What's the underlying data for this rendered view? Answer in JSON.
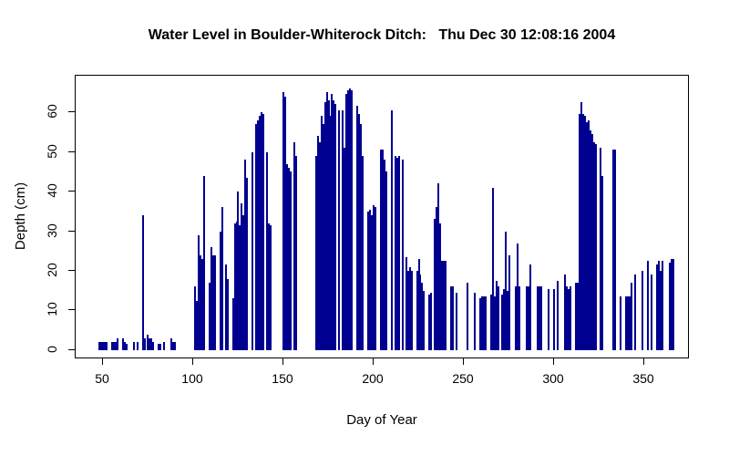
{
  "page": {
    "background": "#ffffff"
  },
  "chart_data": {
    "type": "bar",
    "subtype": "vertical-line-histogram (R type='h')",
    "title": "Water Level in Boulder-Whiterock Ditch:   Thu Dec 30 12:08:16 2004",
    "xlabel": "Day of Year",
    "ylabel": "Depth (cm)",
    "x_ticks": [
      50,
      100,
      150,
      200,
      250,
      300,
      350
    ],
    "y_ticks": [
      0,
      10,
      20,
      30,
      40,
      50,
      60
    ],
    "xlim": [
      34.85,
      375.25
    ],
    "ylim": [
      -2.3,
      69.2
    ],
    "grid": false,
    "legend_position": "none",
    "bar_color": "#000090",
    "axis_color": "#000000",
    "points": [
      [
        48,
        2
      ],
      [
        49,
        2
      ],
      [
        50,
        2
      ],
      [
        51,
        2
      ],
      [
        52,
        2
      ],
      [
        55,
        2
      ],
      [
        56,
        2
      ],
      [
        57,
        2
      ],
      [
        58,
        3
      ],
      [
        61,
        3
      ],
      [
        62,
        2
      ],
      [
        63,
        1.5
      ],
      [
        67,
        2
      ],
      [
        69,
        2
      ],
      [
        72,
        34
      ],
      [
        73,
        3
      ],
      [
        75,
        4
      ],
      [
        76,
        3
      ],
      [
        77,
        3
      ],
      [
        78,
        2
      ],
      [
        81,
        1.5
      ],
      [
        82,
        1.5
      ],
      [
        84,
        2
      ],
      [
        88,
        3
      ],
      [
        89,
        2
      ],
      [
        90,
        2
      ],
      [
        101,
        16
      ],
      [
        102,
        12.5
      ],
      [
        103,
        29
      ],
      [
        104,
        24
      ],
      [
        105,
        23
      ],
      [
        106,
        44
      ],
      [
        109,
        17
      ],
      [
        110,
        26
      ],
      [
        111,
        24
      ],
      [
        112,
        24
      ],
      [
        115,
        30
      ],
      [
        116,
        36
      ],
      [
        118,
        21.5
      ],
      [
        119,
        18
      ],
      [
        122,
        13
      ],
      [
        123,
        32
      ],
      [
        124,
        32.5
      ],
      [
        125,
        40
      ],
      [
        126,
        31.5
      ],
      [
        127,
        37
      ],
      [
        128,
        34
      ],
      [
        129,
        48
      ],
      [
        130,
        43.5
      ],
      [
        133,
        50
      ],
      [
        135,
        57
      ],
      [
        136,
        58
      ],
      [
        137,
        59
      ],
      [
        138,
        60
      ],
      [
        139,
        59.5
      ],
      [
        141,
        50
      ],
      [
        142,
        32
      ],
      [
        143,
        31.5
      ],
      [
        150,
        65
      ],
      [
        151,
        64
      ],
      [
        152,
        47
      ],
      [
        153,
        46
      ],
      [
        154,
        45
      ],
      [
        156,
        52.5
      ],
      [
        157,
        49
      ],
      [
        168,
        49
      ],
      [
        169,
        54
      ],
      [
        170,
        52.5
      ],
      [
        171,
        59
      ],
      [
        172,
        57
      ],
      [
        173,
        62.5
      ],
      [
        174,
        65
      ],
      [
        175,
        63
      ],
      [
        176,
        59
      ],
      [
        177,
        64.5
      ],
      [
        178,
        63
      ],
      [
        179,
        62
      ],
      [
        181,
        60.5
      ],
      [
        183,
        60.5
      ],
      [
        184,
        51
      ],
      [
        185,
        64.5
      ],
      [
        186,
        65.5
      ],
      [
        187,
        66
      ],
      [
        188,
        65.5
      ],
      [
        191,
        61.5
      ],
      [
        192,
        59.5
      ],
      [
        193,
        57
      ],
      [
        194,
        49
      ],
      [
        197,
        35
      ],
      [
        198,
        35.5
      ],
      [
        199,
        34
      ],
      [
        200,
        36.5
      ],
      [
        201,
        36
      ],
      [
        204,
        50.5
      ],
      [
        205,
        50.5
      ],
      [
        206,
        48
      ],
      [
        207,
        45
      ],
      [
        210,
        60.5
      ],
      [
        212,
        49
      ],
      [
        213,
        48.5
      ],
      [
        214,
        49
      ],
      [
        216,
        48
      ],
      [
        218,
        23.5
      ],
      [
        219,
        20
      ],
      [
        220,
        21
      ],
      [
        221,
        20
      ],
      [
        224,
        20
      ],
      [
        225,
        23
      ],
      [
        226,
        19
      ],
      [
        227,
        17
      ],
      [
        228,
        15
      ],
      [
        231,
        14
      ],
      [
        232,
        14.5
      ],
      [
        234,
        33
      ],
      [
        235,
        36
      ],
      [
        236,
        42
      ],
      [
        237,
        32
      ],
      [
        238,
        22.5
      ],
      [
        239,
        22.5
      ],
      [
        240,
        22.5
      ],
      [
        243,
        16
      ],
      [
        244,
        16
      ],
      [
        246,
        14.5
      ],
      [
        252,
        17
      ],
      [
        256,
        14.5
      ],
      [
        259,
        13
      ],
      [
        260,
        13.5
      ],
      [
        261,
        13.5
      ],
      [
        262,
        13.5
      ],
      [
        265,
        14
      ],
      [
        266,
        41
      ],
      [
        267,
        13.5
      ],
      [
        268,
        17.5
      ],
      [
        269,
        16
      ],
      [
        271,
        14
      ],
      [
        272,
        15.5
      ],
      [
        273,
        30
      ],
      [
        274,
        15
      ],
      [
        275,
        24
      ],
      [
        279,
        16
      ],
      [
        280,
        27
      ],
      [
        281,
        16
      ],
      [
        285,
        16
      ],
      [
        286,
        16
      ],
      [
        287,
        21.5
      ],
      [
        291,
        16
      ],
      [
        292,
        16
      ],
      [
        293,
        16
      ],
      [
        297,
        15.5
      ],
      [
        300,
        15.5
      ],
      [
        302,
        17.5
      ],
      [
        306,
        19
      ],
      [
        307,
        16
      ],
      [
        308,
        15.5
      ],
      [
        309,
        16
      ],
      [
        312,
        17
      ],
      [
        313,
        17
      ],
      [
        314,
        59.5
      ],
      [
        315,
        62.5
      ],
      [
        316,
        59.5
      ],
      [
        317,
        59
      ],
      [
        318,
        57.5
      ],
      [
        319,
        58
      ],
      [
        320,
        55.5
      ],
      [
        321,
        54.5
      ],
      [
        322,
        52.5
      ],
      [
        323,
        52
      ],
      [
        326,
        51
      ],
      [
        327,
        44
      ],
      [
        333,
        50.5
      ],
      [
        334,
        50.5
      ],
      [
        337,
        13.5
      ],
      [
        340,
        13.5
      ],
      [
        341,
        13.5
      ],
      [
        342,
        13.5
      ],
      [
        343,
        17
      ],
      [
        345,
        19
      ],
      [
        349,
        20
      ],
      [
        352,
        22.5
      ],
      [
        354,
        19
      ],
      [
        357,
        21.5
      ],
      [
        358,
        22.5
      ],
      [
        359,
        20
      ],
      [
        360,
        22.5
      ],
      [
        364,
        22
      ],
      [
        365,
        23
      ],
      [
        366,
        23
      ]
    ]
  }
}
